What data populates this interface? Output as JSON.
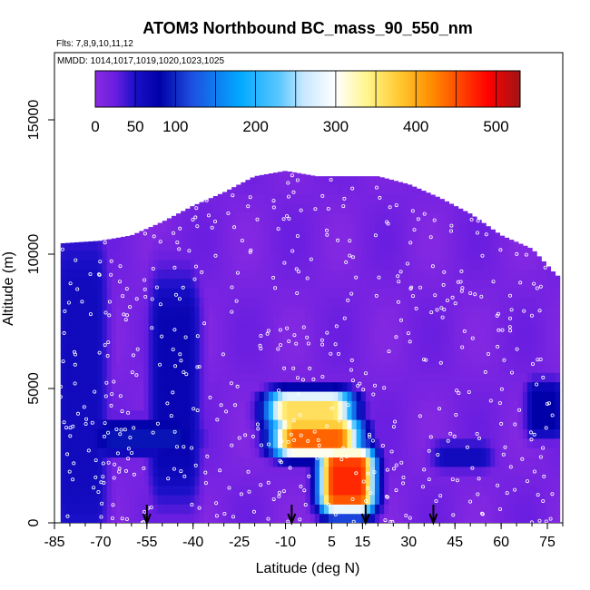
{
  "chart_data": {
    "type": "heatmap",
    "title": "ATOM3 Northbound BC_mass_90_550_nm",
    "flights_note": "Flts: 7,8,9,10,11,12",
    "dates_note": "MMDD: 1014,1017,1019,1020,1023,1025",
    "xlabel": "Latitude (deg N)",
    "ylabel": "Altitude (m)",
    "xlim": [
      -85,
      80
    ],
    "ylim": [
      0,
      17500
    ],
    "x_ticks": [
      -85,
      -70,
      -55,
      -40,
      -25,
      -10,
      5,
      15,
      30,
      45,
      60,
      75
    ],
    "x_tick_labels": [
      "-85",
      "-70",
      "-55",
      "-40",
      "-25",
      "-10",
      "5",
      "15",
      "30",
      "45",
      "60",
      "75"
    ],
    "y_ticks": [
      0,
      5000,
      10000,
      15000
    ],
    "y_tick_labels": [
      "0",
      "5000",
      "10000",
      "15000"
    ],
    "colorbar": {
      "range": [
        0,
        530
      ],
      "ticks": [
        0,
        50,
        100,
        200,
        300,
        400,
        500
      ],
      "tick_labels": [
        "0",
        "50",
        "100",
        "200",
        "300",
        "400",
        "500"
      ],
      "stops": [
        {
          "v": 0,
          "c": "#8a2be2"
        },
        {
          "v": 25,
          "c": "#6a1ee0"
        },
        {
          "v": 50,
          "c": "#1a10c8"
        },
        {
          "v": 80,
          "c": "#0000a8"
        },
        {
          "v": 120,
          "c": "#1e4ee0"
        },
        {
          "v": 180,
          "c": "#00a8ff"
        },
        {
          "v": 230,
          "c": "#5bc8ff"
        },
        {
          "v": 260,
          "c": "#c8e8ff"
        },
        {
          "v": 300,
          "c": "#ffffff"
        },
        {
          "v": 340,
          "c": "#fff58a"
        },
        {
          "v": 380,
          "c": "#ffc830"
        },
        {
          "v": 420,
          "c": "#ff8c00"
        },
        {
          "v": 460,
          "c": "#ff3c00"
        },
        {
          "v": 490,
          "c": "#ff0000"
        },
        {
          "v": 530,
          "c": "#a01414"
        }
      ]
    },
    "flight_dates_arrows_lat": [
      -55,
      -8,
      16,
      38
    ],
    "altitude_envelope": [
      {
        "lat": -83,
        "top": 10400
      },
      {
        "lat": -70,
        "top": 10500
      },
      {
        "lat": -60,
        "top": 10700
      },
      {
        "lat": -50,
        "top": 11200
      },
      {
        "lat": -40,
        "top": 11800
      },
      {
        "lat": -30,
        "top": 12300
      },
      {
        "lat": -20,
        "top": 12900
      },
      {
        "lat": -10,
        "top": 13100
      },
      {
        "lat": 0,
        "top": 12900
      },
      {
        "lat": 10,
        "top": 12900
      },
      {
        "lat": 20,
        "top": 12900
      },
      {
        "lat": 30,
        "top": 12600
      },
      {
        "lat": 40,
        "top": 12100
      },
      {
        "lat": 50,
        "top": 11500
      },
      {
        "lat": 60,
        "top": 10700
      },
      {
        "lat": 70,
        "top": 10200
      },
      {
        "lat": 78,
        "top": 9200
      }
    ],
    "features": [
      {
        "name": "high-lat-south-column",
        "lat": [
          -83,
          -70
        ],
        "alt": [
          0,
          10000
        ],
        "value": 60
      },
      {
        "name": "southern-column",
        "lat": [
          -52,
          -40
        ],
        "alt": [
          1500,
          8500
        ],
        "value": 70
      },
      {
        "name": "southern-band",
        "lat": [
          -70,
          -42
        ],
        "alt": [
          2800,
          3600
        ],
        "value": 90
      },
      {
        "name": "plume-core-upper",
        "lat": [
          -12,
          8
        ],
        "alt": [
          3800,
          4600
        ],
        "value": 360
      },
      {
        "name": "plume-core-mid",
        "lat": [
          -10,
          10
        ],
        "alt": [
          2800,
          3600
        ],
        "value": 440
      },
      {
        "name": "plume-core-low",
        "lat": [
          4,
          16
        ],
        "alt": [
          800,
          2400
        ],
        "value": 470
      },
      {
        "name": "northern-band",
        "lat": [
          40,
          55
        ],
        "alt": [
          2200,
          2800
        ],
        "value": 60
      },
      {
        "name": "northern-column",
        "lat": [
          70,
          78
        ],
        "alt": [
          3500,
          5000
        ],
        "value": 80
      }
    ]
  }
}
